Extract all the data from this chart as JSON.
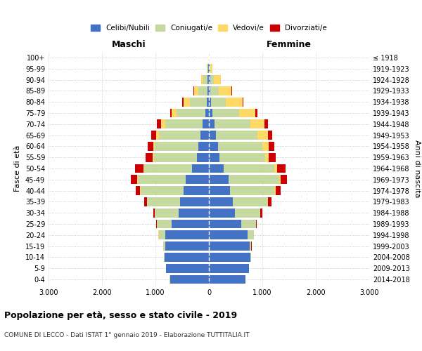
{
  "age_groups": [
    "0-4",
    "5-9",
    "10-14",
    "15-19",
    "20-24",
    "25-29",
    "30-34",
    "35-39",
    "40-44",
    "45-49",
    "50-54",
    "55-59",
    "60-64",
    "65-69",
    "70-74",
    "75-79",
    "80-84",
    "85-89",
    "90-94",
    "95-99",
    "100+"
  ],
  "birth_years": [
    "2014-2018",
    "2009-2013",
    "2004-2008",
    "1999-2003",
    "1994-1998",
    "1989-1993",
    "1984-1988",
    "1979-1983",
    "1974-1978",
    "1969-1973",
    "1964-1968",
    "1959-1963",
    "1954-1958",
    "1949-1953",
    "1944-1948",
    "1939-1943",
    "1934-1938",
    "1929-1933",
    "1924-1928",
    "1919-1923",
    "≤ 1918"
  ],
  "male_celibi": [
    730,
    800,
    830,
    820,
    820,
    700,
    560,
    540,
    480,
    430,
    310,
    220,
    200,
    160,
    120,
    70,
    40,
    30,
    20,
    8,
    2
  ],
  "male_coniugati": [
    3,
    5,
    10,
    30,
    120,
    270,
    450,
    620,
    800,
    900,
    900,
    810,
    810,
    780,
    700,
    530,
    320,
    170,
    80,
    25,
    3
  ],
  "male_vedovi": [
    0,
    0,
    1,
    1,
    2,
    2,
    2,
    3,
    5,
    10,
    15,
    20,
    30,
    50,
    80,
    100,
    120,
    80,
    40,
    10,
    1
  ],
  "male_divorziati": [
    0,
    0,
    1,
    2,
    5,
    15,
    30,
    50,
    80,
    120,
    155,
    130,
    110,
    90,
    70,
    30,
    15,
    10,
    5,
    2,
    0
  ],
  "female_celibi": [
    680,
    750,
    780,
    760,
    720,
    600,
    490,
    450,
    400,
    370,
    270,
    200,
    170,
    130,
    100,
    60,
    35,
    30,
    20,
    8,
    2
  ],
  "female_coniugati": [
    3,
    5,
    10,
    35,
    120,
    280,
    470,
    650,
    830,
    940,
    960,
    850,
    830,
    780,
    670,
    500,
    280,
    150,
    70,
    20,
    2
  ],
  "female_vedovi": [
    0,
    0,
    1,
    1,
    2,
    3,
    5,
    10,
    20,
    35,
    50,
    70,
    120,
    200,
    270,
    310,
    310,
    240,
    130,
    40,
    3
  ],
  "female_divorziati": [
    0,
    0,
    1,
    2,
    5,
    15,
    30,
    55,
    90,
    120,
    160,
    130,
    110,
    80,
    60,
    35,
    20,
    15,
    8,
    2,
    0
  ],
  "colors": {
    "celibi": "#4472c4",
    "coniugati": "#c5d9a0",
    "vedovi": "#ffd966",
    "divorziati": "#cc0000"
  },
  "xlim": 3000,
  "title": "Popolazione per età, sesso e stato civile - 2019",
  "subtitle": "COMUNE DI LECCO - Dati ISTAT 1° gennaio 2019 - Elaborazione TUTTITALIA.IT",
  "ylabel_left": "Fasce di età",
  "ylabel_right": "Anni di nascita",
  "legend_labels": [
    "Celibi/Nubili",
    "Coniugati/e",
    "Vedovi/e",
    "Divorziati/e"
  ],
  "header_maschi": "Maschi",
  "header_femmine": "Femmine"
}
